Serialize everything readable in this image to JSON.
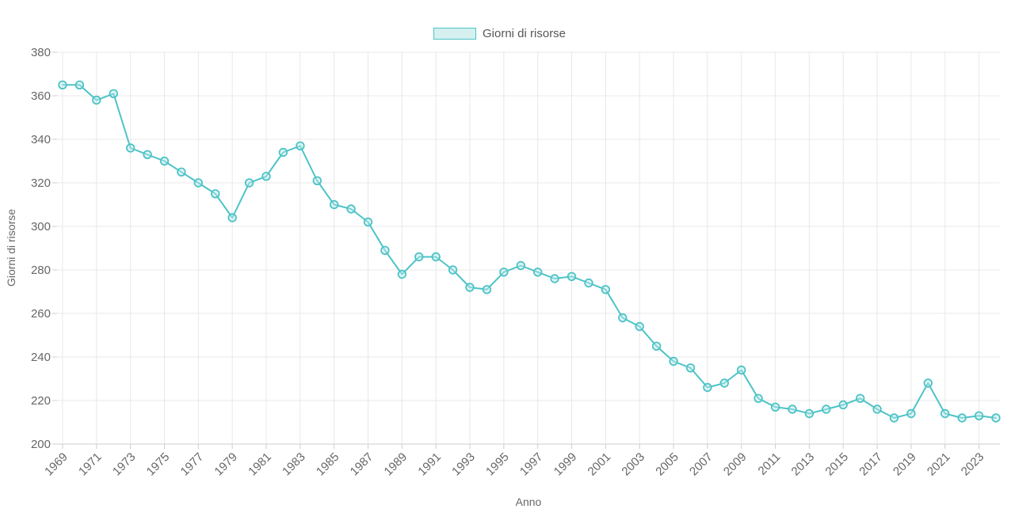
{
  "legend": {
    "label": "Giorni di risorse"
  },
  "chart_data": {
    "type": "line",
    "title": "Giorni di risorse",
    "xlabel": "Anno",
    "ylabel": "Giorni di risorse",
    "series_name": "Giorni di risorse",
    "x": [
      1969,
      1970,
      1971,
      1972,
      1973,
      1974,
      1975,
      1976,
      1977,
      1978,
      1979,
      1980,
      1981,
      1982,
      1983,
      1984,
      1985,
      1986,
      1987,
      1988,
      1989,
      1990,
      1991,
      1992,
      1993,
      1994,
      1995,
      1996,
      1997,
      1998,
      1999,
      2000,
      2001,
      2002,
      2003,
      2004,
      2005,
      2006,
      2007,
      2008,
      2009,
      2010,
      2011,
      2012,
      2013,
      2014,
      2015,
      2016,
      2017,
      2018,
      2019,
      2020,
      2021,
      2022,
      2023,
      2024
    ],
    "values": [
      365,
      365,
      358,
      361,
      336,
      333,
      330,
      325,
      320,
      315,
      304,
      320,
      323,
      334,
      337,
      321,
      310,
      308,
      302,
      289,
      278,
      286,
      286,
      280,
      272,
      271,
      279,
      282,
      279,
      276,
      277,
      274,
      271,
      258,
      254,
      245,
      238,
      235,
      226,
      228,
      234,
      221,
      217,
      216,
      214,
      216,
      218,
      221,
      216,
      212,
      214,
      228,
      214,
      212,
      213,
      212
    ],
    "ylim": [
      200,
      380
    ],
    "ytick_values": [
      200,
      220,
      240,
      260,
      280,
      300,
      320,
      340,
      360,
      380
    ],
    "xtick_labels": [
      "1969",
      "1971",
      "1973",
      "1975",
      "1977",
      "1979",
      "1981",
      "1983",
      "1985",
      "1987",
      "1989",
      "1991",
      "1993",
      "1995",
      "1997",
      "1999",
      "2001",
      "2003",
      "2005",
      "2007",
      "2009",
      "2011",
      "2013",
      "2015",
      "2017",
      "2019",
      "2021",
      "2023"
    ],
    "grid": true,
    "legend_position": "top-center",
    "x_labels_rotation_deg": -45,
    "colors": {
      "line": "#4dc3c7",
      "marker_stroke": "#4dc3c7",
      "marker_fill": "#bfe8e8",
      "legend_fill": "#d5f0ef",
      "gridline": "#e8e8e8",
      "axis_line": "#cccccc",
      "tick_text": "#666666",
      "axis_title_text": "#666666"
    }
  }
}
